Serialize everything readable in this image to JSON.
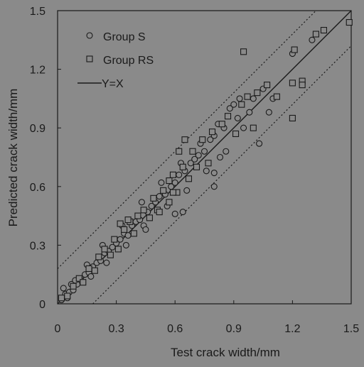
{
  "chart_data": {
    "type": "scatter",
    "xlabel": "Test crack width/mm",
    "ylabel": "Predicted crack width/mm",
    "xlim": [
      0,
      1.5
    ],
    "ylim": [
      0,
      1.5
    ],
    "xticks": [
      0,
      0.3,
      0.6,
      0.9,
      1.2,
      1.5
    ],
    "yticks": [
      0,
      0.3,
      0.6,
      0.9,
      1.2,
      1.5
    ],
    "xtick_labels": [
      "0",
      "0.3",
      "0.6",
      "0.9",
      "1.2",
      "1.5"
    ],
    "ytick_labels": [
      "0",
      "0.3",
      "0.6",
      "0.9",
      "1.2",
      "1.5"
    ],
    "grid": false,
    "legend_position": "top-left",
    "colors": {
      "background": "#8a8a8a",
      "ink": "#1a1a1a",
      "marker_fill": "#8a8a8a"
    },
    "series": [
      {
        "name": "Group S",
        "marker": "circle",
        "points": [
          [
            0.02,
            0.02
          ],
          [
            0.04,
            0.05
          ],
          [
            0.06,
            0.06
          ],
          [
            0.08,
            0.07
          ],
          [
            0.1,
            0.1
          ],
          [
            0.12,
            0.12
          ],
          [
            0.14,
            0.15
          ],
          [
            0.16,
            0.16
          ],
          [
            0.18,
            0.19
          ],
          [
            0.2,
            0.21
          ],
          [
            0.22,
            0.22
          ],
          [
            0.24,
            0.26
          ],
          [
            0.26,
            0.27
          ],
          [
            0.28,
            0.29
          ],
          [
            0.3,
            0.31
          ],
          [
            0.32,
            0.33
          ],
          [
            0.34,
            0.36
          ],
          [
            0.36,
            0.35
          ],
          [
            0.38,
            0.4
          ],
          [
            0.4,
            0.42
          ],
          [
            0.42,
            0.43
          ],
          [
            0.44,
            0.4
          ],
          [
            0.46,
            0.47
          ],
          [
            0.48,
            0.5
          ],
          [
            0.5,
            0.52
          ],
          [
            0.52,
            0.55
          ],
          [
            0.55,
            0.56
          ],
          [
            0.58,
            0.6
          ],
          [
            0.6,
            0.62
          ],
          [
            0.62,
            0.66
          ],
          [
            0.65,
            0.68
          ],
          [
            0.68,
            0.72
          ],
          [
            0.7,
            0.74
          ],
          [
            0.72,
            0.76
          ],
          [
            0.75,
            0.78
          ],
          [
            0.78,
            0.84
          ],
          [
            0.8,
            0.86
          ],
          [
            0.82,
            0.92
          ],
          [
            0.85,
            0.9
          ],
          [
            0.88,
            1.0
          ],
          [
            0.9,
            1.02
          ],
          [
            0.92,
            0.95
          ],
          [
            0.95,
            0.9
          ],
          [
            1.0,
            1.05
          ],
          [
            1.05,
            1.1
          ],
          [
            1.1,
            1.05
          ],
          [
            1.2,
            1.28
          ],
          [
            1.3,
            1.35
          ],
          [
            0.03,
            0.08
          ],
          [
            0.05,
            0.03
          ],
          [
            0.07,
            0.1
          ],
          [
            0.09,
            0.12
          ],
          [
            0.15,
            0.2
          ],
          [
            0.17,
            0.14
          ],
          [
            0.23,
            0.3
          ],
          [
            0.25,
            0.21
          ],
          [
            0.33,
            0.4
          ],
          [
            0.35,
            0.3
          ],
          [
            0.43,
            0.52
          ],
          [
            0.45,
            0.38
          ],
          [
            0.53,
            0.62
          ],
          [
            0.56,
            0.5
          ],
          [
            0.63,
            0.72
          ],
          [
            0.66,
            0.58
          ],
          [
            0.73,
            0.82
          ],
          [
            0.76,
            0.68
          ],
          [
            0.83,
            0.75
          ],
          [
            0.86,
            0.78
          ],
          [
            0.93,
            1.05
          ],
          [
            0.98,
            0.98
          ],
          [
            1.03,
            0.82
          ],
          [
            1.08,
            0.98
          ],
          [
            0.6,
            0.46
          ],
          [
            0.64,
            0.47
          ],
          [
            0.8,
            0.6
          ],
          [
            0.8,
            0.67
          ]
        ]
      },
      {
        "name": "Group RS",
        "marker": "square",
        "points": [
          [
            0.02,
            0.03
          ],
          [
            0.05,
            0.04
          ],
          [
            0.08,
            0.09
          ],
          [
            0.11,
            0.13
          ],
          [
            0.13,
            0.11
          ],
          [
            0.16,
            0.18
          ],
          [
            0.19,
            0.17
          ],
          [
            0.21,
            0.24
          ],
          [
            0.24,
            0.28
          ],
          [
            0.27,
            0.25
          ],
          [
            0.29,
            0.33
          ],
          [
            0.31,
            0.28
          ],
          [
            0.34,
            0.38
          ],
          [
            0.37,
            0.42
          ],
          [
            0.39,
            0.36
          ],
          [
            0.41,
            0.45
          ],
          [
            0.44,
            0.48
          ],
          [
            0.47,
            0.44
          ],
          [
            0.49,
            0.54
          ],
          [
            0.51,
            0.48
          ],
          [
            0.54,
            0.58
          ],
          [
            0.57,
            0.63
          ],
          [
            0.59,
            0.66
          ],
          [
            0.61,
            0.57
          ],
          [
            0.64,
            0.7
          ],
          [
            0.67,
            0.64
          ],
          [
            0.69,
            0.78
          ],
          [
            0.71,
            0.7
          ],
          [
            0.74,
            0.84
          ],
          [
            0.77,
            0.72
          ],
          [
            0.79,
            0.88
          ],
          [
            0.84,
            0.92
          ],
          [
            0.87,
            0.96
          ],
          [
            0.91,
            0.87
          ],
          [
            0.94,
            1.02
          ],
          [
            0.97,
            1.06
          ],
          [
            1.02,
            1.08
          ],
          [
            1.07,
            1.12
          ],
          [
            1.12,
            1.06
          ],
          [
            1.21,
            1.3
          ],
          [
            1.25,
            1.14
          ],
          [
            1.32,
            1.38
          ],
          [
            1.36,
            1.4
          ],
          [
            1.49,
            1.44
          ],
          [
            0.95,
            1.29
          ],
          [
            1.2,
            0.95
          ],
          [
            1.25,
            1.12
          ],
          [
            1.2,
            1.13
          ],
          [
            0.62,
            0.78
          ],
          [
            0.65,
            0.84
          ],
          [
            1.0,
            0.9
          ],
          [
            0.32,
            0.41
          ],
          [
            0.36,
            0.43
          ],
          [
            0.52,
            0.47
          ],
          [
            0.57,
            0.52
          ],
          [
            0.59,
            0.57
          ]
        ]
      },
      {
        "name": "Y=X",
        "type": "line",
        "points": [
          [
            0,
            0
          ],
          [
            1.5,
            1.5
          ]
        ]
      },
      {
        "type": "dotted-line",
        "points": [
          [
            0,
            0.18
          ],
          [
            1.32,
            1.5
          ]
        ]
      },
      {
        "type": "dotted-line",
        "points": [
          [
            0.18,
            0
          ],
          [
            1.5,
            1.32
          ]
        ]
      }
    ]
  }
}
